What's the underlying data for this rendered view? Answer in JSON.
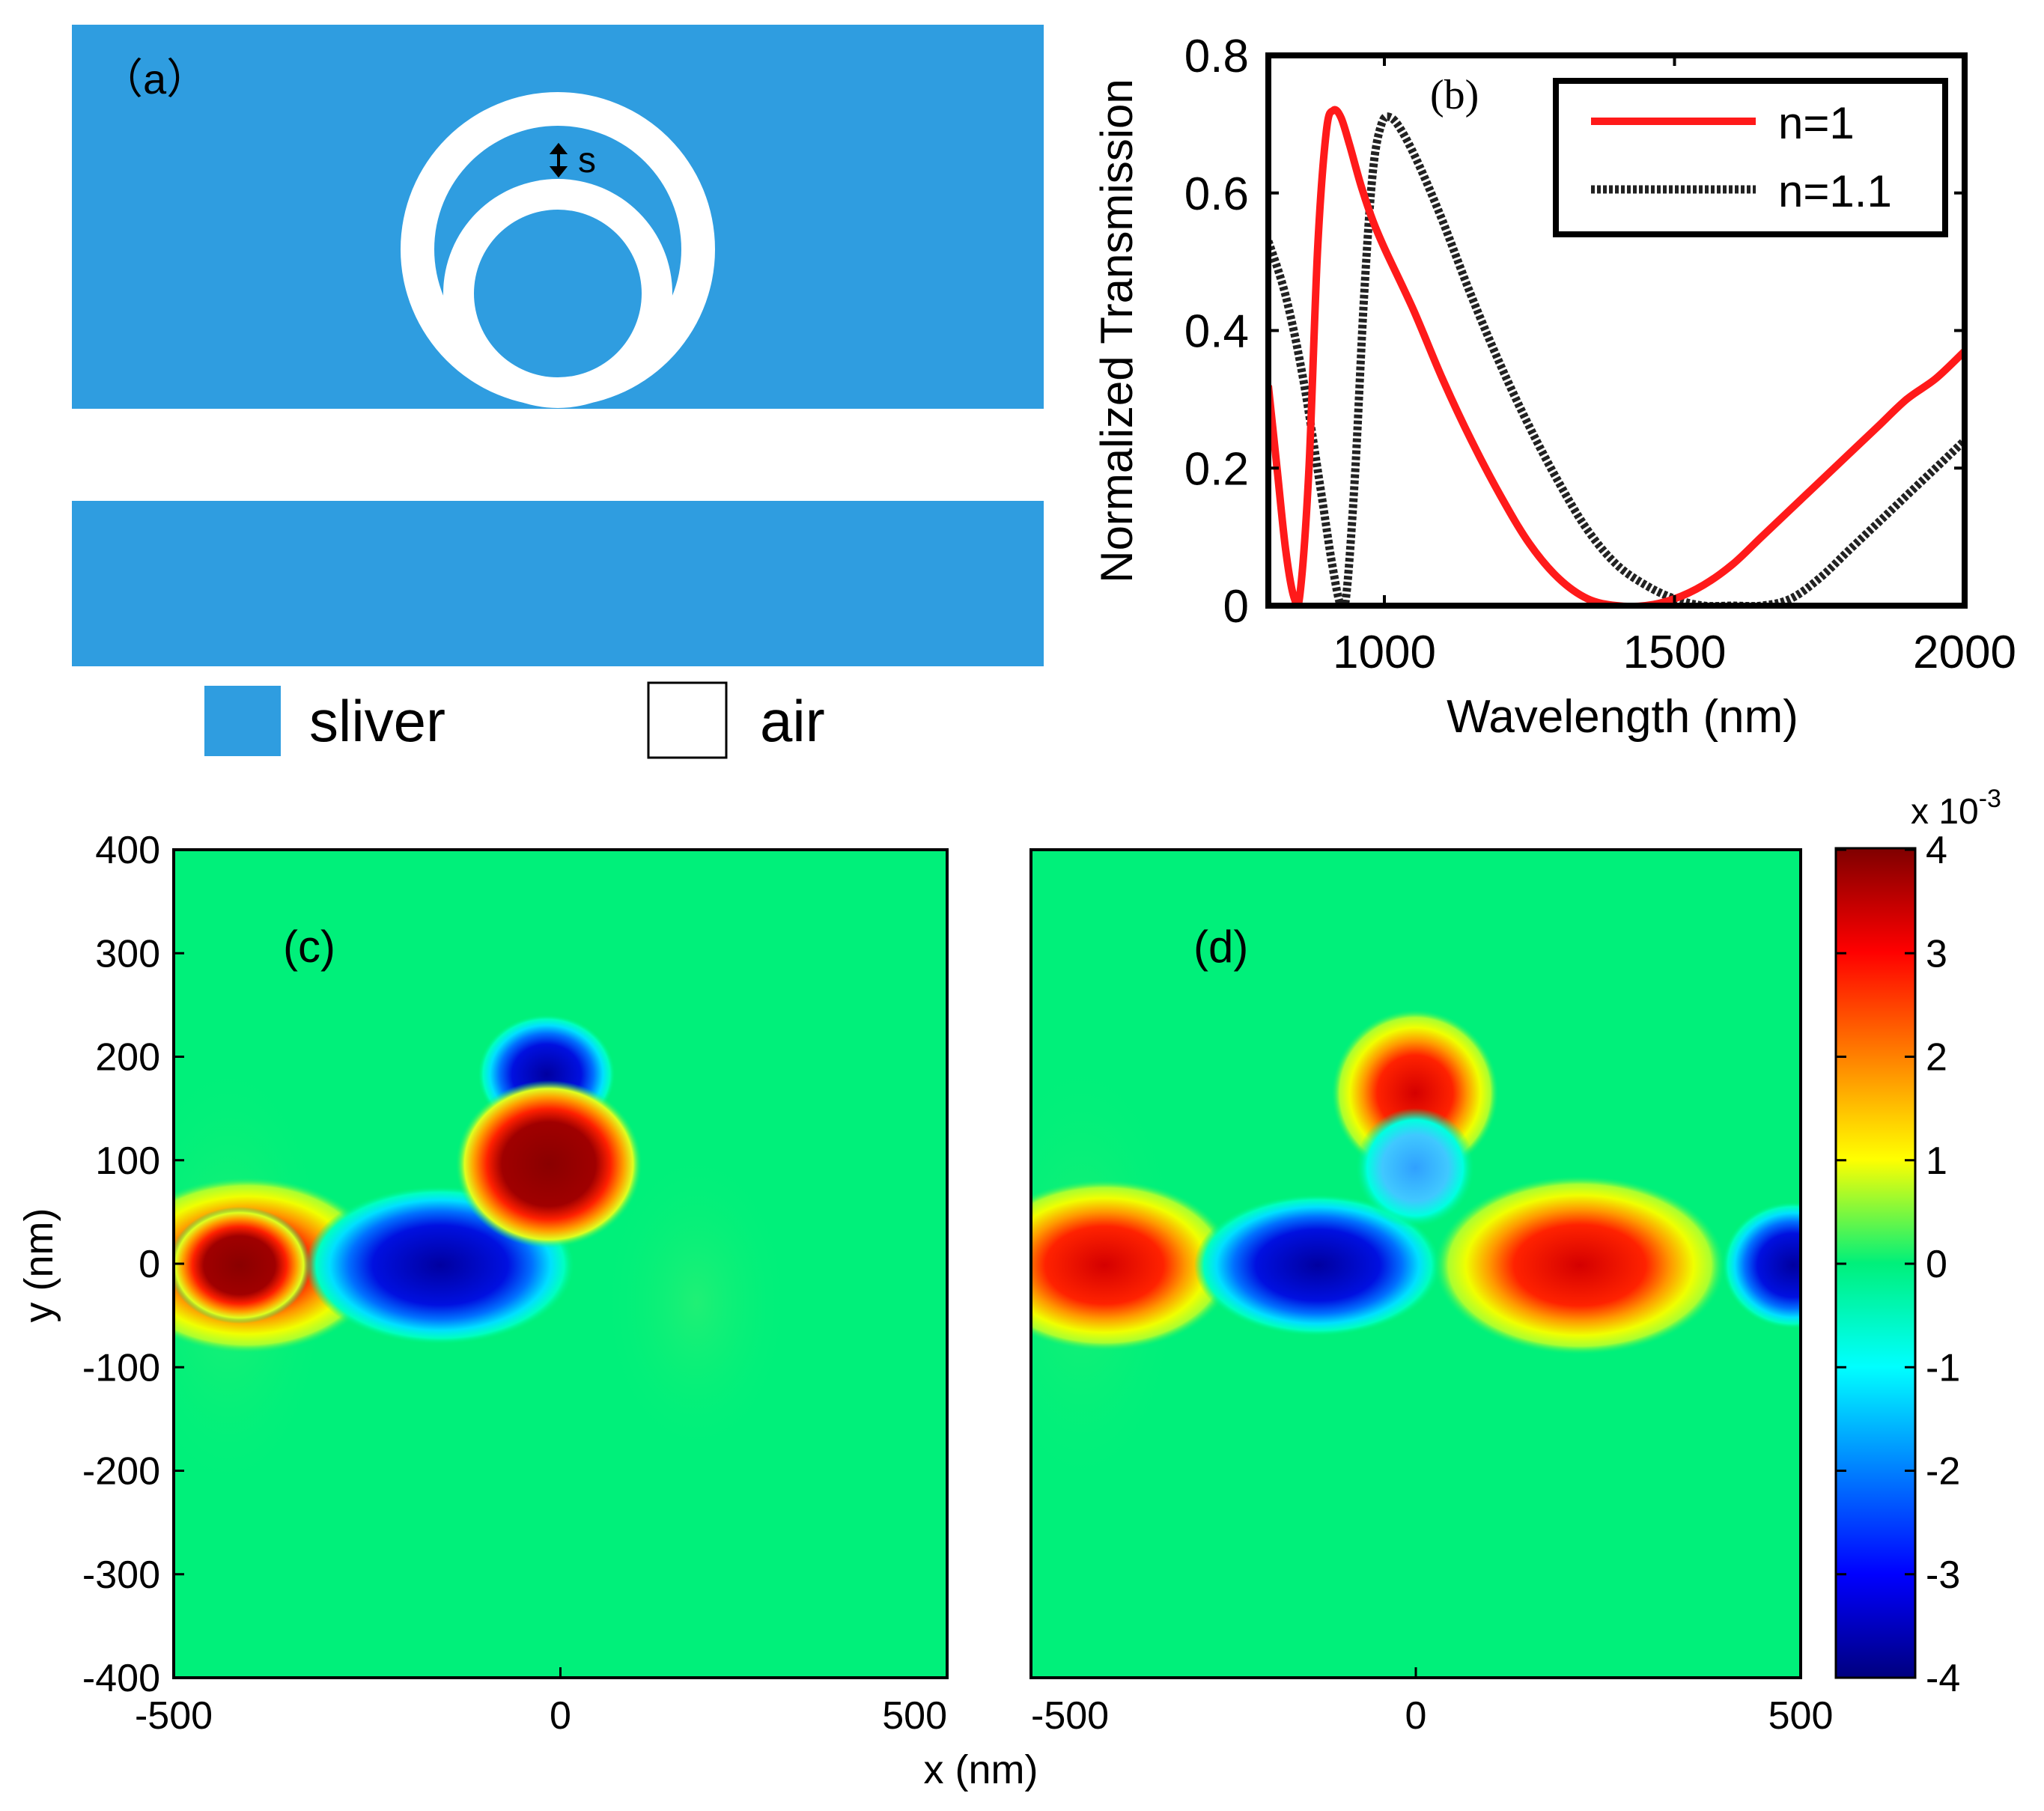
{
  "panel_a": {
    "label": "（a）",
    "gap_label": "s",
    "legend": [
      {
        "name": "sliver",
        "color": "#2f9de0"
      },
      {
        "name": "air",
        "color": "#ffffff"
      }
    ]
  },
  "colors": {
    "silver": "#2f9de0",
    "n1": "#ff1a1a",
    "n11": "#222222"
  },
  "colorbar": {
    "exponent_label": "x 10",
    "exponent_power": "-3",
    "ticks": [
      "4",
      "3",
      "2",
      "1",
      "0",
      "-1",
      "-2",
      "-3",
      "-4"
    ],
    "range": [
      -4,
      4
    ]
  },
  "chart_data": [
    {
      "panel": "b",
      "type": "line",
      "panel_label": "(b)",
      "xlabel": "Wavelength (nm)",
      "ylabel": "Normalized Transmission",
      "xlim": [
        800,
        2000
      ],
      "ylim": [
        0,
        0.8
      ],
      "xticks": [
        "1000",
        "1500",
        "2000"
      ],
      "yticks": [
        "0",
        "0.2",
        "0.4",
        "0.6",
        "0.8"
      ],
      "legend_position": "top-right",
      "series": [
        {
          "name": "n=1",
          "style": "solid",
          "x": [
            800,
            815,
            830,
            845,
            855,
            870,
            885,
            900,
            912,
            925,
            940,
            960,
            980,
            1000,
            1050,
            1100,
            1150,
            1200,
            1250,
            1300,
            1350,
            1400,
            1450,
            1500,
            1550,
            1600,
            1650,
            1700,
            1750,
            1800,
            1850,
            1900,
            1950,
            2000
          ],
          "y": [
            0.32,
            0.2,
            0.08,
            0.01,
            0.02,
            0.2,
            0.52,
            0.69,
            0.72,
            0.71,
            0.67,
            0.61,
            0.56,
            0.52,
            0.43,
            0.33,
            0.24,
            0.16,
            0.09,
            0.04,
            0.01,
            0.0,
            0.0,
            0.01,
            0.03,
            0.06,
            0.1,
            0.14,
            0.18,
            0.22,
            0.26,
            0.3,
            0.33,
            0.37
          ]
        },
        {
          "name": "n=1.1",
          "style": "dotted",
          "x": [
            800,
            830,
            860,
            890,
            910,
            925,
            935,
            950,
            965,
            980,
            995,
            1010,
            1030,
            1060,
            1100,
            1150,
            1200,
            1250,
            1300,
            1350,
            1400,
            1450,
            1500,
            1550,
            1600,
            1650,
            1700,
            1750,
            1800,
            1850,
            1900,
            1950,
            2000
          ],
          "y": [
            0.53,
            0.45,
            0.33,
            0.17,
            0.06,
            0.0,
            0.02,
            0.2,
            0.45,
            0.63,
            0.7,
            0.71,
            0.69,
            0.64,
            0.56,
            0.45,
            0.35,
            0.26,
            0.18,
            0.11,
            0.06,
            0.03,
            0.01,
            0.0,
            0.0,
            0.0,
            0.01,
            0.04,
            0.08,
            0.12,
            0.16,
            0.2,
            0.24
          ]
        }
      ]
    },
    {
      "panel": "c",
      "type": "heatmap",
      "panel_label": "(c)",
      "xlabel": "x (nm)",
      "ylabel": "y (nm)",
      "xlim": [
        -500,
        500
      ],
      "ylim": [
        -400,
        400
      ],
      "xticks": [
        "-500",
        "0",
        "500"
      ],
      "yticks": [
        "400",
        "300",
        "200",
        "100",
        "0",
        "-100",
        "-200",
        "-300",
        "-400"
      ],
      "features": [
        {
          "x": -420,
          "y": 0,
          "value": 4
        },
        {
          "x": -160,
          "y": 0,
          "value": -4
        },
        {
          "x": 0,
          "y": 190,
          "value": -4
        },
        {
          "x": 0,
          "y": 100,
          "value": 4
        }
      ]
    },
    {
      "panel": "d",
      "type": "heatmap",
      "panel_label": "(d)",
      "xlabel": "x (nm)",
      "ylabel": "y (nm)",
      "xlim": [
        -500,
        500
      ],
      "ylim": [
        -400,
        400
      ],
      "xticks": [
        "-500",
        "0",
        "500"
      ],
      "features": [
        {
          "x": -420,
          "y": 0,
          "value": 3.3
        },
        {
          "x": -120,
          "y": 0,
          "value": -3.3
        },
        {
          "x": 0,
          "y": 180,
          "value": 3.3
        },
        {
          "x": 0,
          "y": 100,
          "value": -1.5
        },
        {
          "x": 215,
          "y": 0,
          "value": 3.0
        },
        {
          "x": 470,
          "y": 0,
          "value": -2.8
        }
      ]
    }
  ]
}
